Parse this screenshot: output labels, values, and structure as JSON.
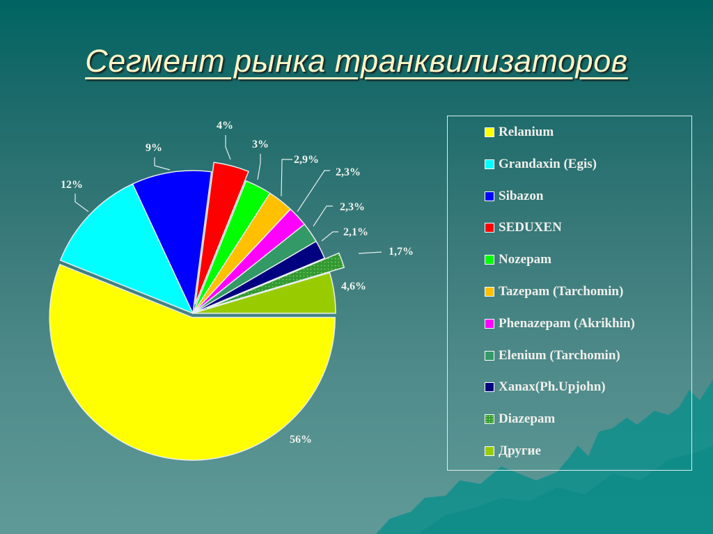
{
  "slide": {
    "title": "Сегмент рынка транквилизаторов"
  },
  "legend": {
    "items": [
      {
        "label": "Relanium",
        "color": "#ffff00"
      },
      {
        "label": "Grandaxin (Egis)",
        "color": "#00ffff"
      },
      {
        "label": "Sibazon",
        "color": "#0000ff"
      },
      {
        "label": "SEDUXEN",
        "color": "#ff0000"
      },
      {
        "label": "Nozepam",
        "color": "#00ff00"
      },
      {
        "label": "Tazepam (Tarchomin)",
        "color": "#ffc000"
      },
      {
        "label": "Phenazepam (Akrikhin)",
        "color": "#ff00ff"
      },
      {
        "label": "Elenium (Tarchomin)",
        "color": "#339966"
      },
      {
        "label": "Xanax(Ph.Upjohn)",
        "color": "#000080"
      },
      {
        "label": "Diazepam",
        "color": "#339933",
        "pattern": "dotted"
      },
      {
        "label": "Другие",
        "color": "#99cc00"
      }
    ]
  },
  "chart_data": {
    "type": "pie",
    "title": "Сегмент рынка транквилизаторов",
    "categories": [
      "Relanium",
      "Grandaxin (Egis)",
      "Sibazon",
      "SEDUXEN",
      "Nozepam",
      "Tazepam (Tarchomin)",
      "Phenazepam (Akrikhin)",
      "Elenium (Tarchomin)",
      "Xanax(Ph.Upjohn)",
      "Diazepam",
      "Другие"
    ],
    "values": [
      56,
      12,
      9,
      4,
      3,
      2.9,
      2.3,
      2.3,
      2.1,
      1.7,
      4.6
    ],
    "data_labels": [
      "56%",
      "12%",
      "9%",
      "4%",
      "3%",
      "2,9%",
      "2,3%",
      "2,3%",
      "2,1%",
      "1,7%",
      "4,6%"
    ],
    "colors": [
      "#ffff00",
      "#00ffff",
      "#0000ff",
      "#ff0000",
      "#00ff00",
      "#ffc000",
      "#ff00ff",
      "#339966",
      "#000080",
      "#339933",
      "#99cc00"
    ],
    "exploded": [
      "Relanium",
      "SEDUXEN",
      "Diazepam"
    ],
    "legend_position": "right"
  }
}
